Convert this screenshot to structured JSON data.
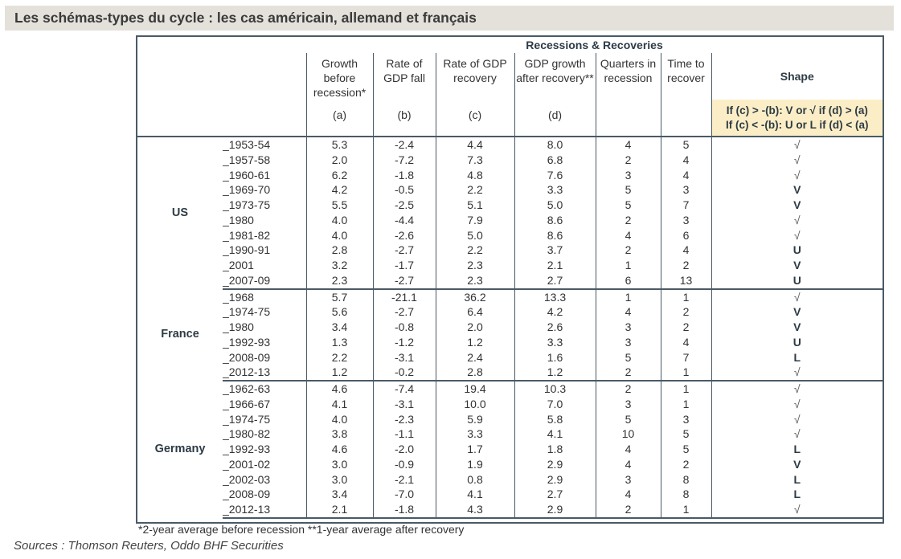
{
  "title": "Les schémas-types du cycle : les cas américain, allemand et français",
  "table": {
    "super_header": "Recessions & Recoveries",
    "columns": [
      {
        "label": "Growth before recession*",
        "symbol": "(a)"
      },
      {
        "label": "Rate of GDP fall",
        "symbol": "(b)"
      },
      {
        "label": "Rate of GDP recovery",
        "symbol": "(c)"
      },
      {
        "label": "GDP growth after recovery**",
        "symbol": "(d)"
      },
      {
        "label": "Quarters in recession",
        "symbol": ""
      },
      {
        "label": "Time to recover",
        "symbol": ""
      }
    ],
    "shape_header": "Shape",
    "shape_condition_1": "If (c) > -(b): V or √ if (d) > (a)",
    "shape_condition_2": "If (c) < -(b): U or L if (d) < (a)",
    "groups": [
      {
        "country": "US",
        "rows": [
          {
            "period": "_1953-54",
            "a": "5.3",
            "b": "-2.4",
            "c": "4.4",
            "d": "8.0",
            "q": "4",
            "t": "5",
            "shape": "√"
          },
          {
            "period": "_1957-58",
            "a": "2.0",
            "b": "-7.2",
            "c": "7.3",
            "d": "6.8",
            "q": "2",
            "t": "4",
            "shape": "√"
          },
          {
            "period": "_1960-61",
            "a": "6.2",
            "b": "-1.8",
            "c": "4.8",
            "d": "7.6",
            "q": "3",
            "t": "4",
            "shape": "√"
          },
          {
            "period": "_1969-70",
            "a": "4.2",
            "b": "-0.5",
            "c": "2.2",
            "d": "3.3",
            "q": "5",
            "t": "3",
            "shape": "V"
          },
          {
            "period": "_1973-75",
            "a": "5.5",
            "b": "-2.5",
            "c": "5.1",
            "d": "5.0",
            "q": "5",
            "t": "7",
            "shape": "V"
          },
          {
            "period": "_1980",
            "a": "4.0",
            "b": "-4.4",
            "c": "7.9",
            "d": "8.6",
            "q": "2",
            "t": "3",
            "shape": "√"
          },
          {
            "period": "_1981-82",
            "a": "4.0",
            "b": "-2.6",
            "c": "5.0",
            "d": "8.6",
            "q": "4",
            "t": "6",
            "shape": "√"
          },
          {
            "period": "_1990-91",
            "a": "2.8",
            "b": "-2.7",
            "c": "2.2",
            "d": "3.7",
            "q": "2",
            "t": "4",
            "shape": "U"
          },
          {
            "period": "_2001",
            "a": "3.2",
            "b": "-1.7",
            "c": "2.3",
            "d": "2.1",
            "q": "1",
            "t": "2",
            "shape": "V"
          },
          {
            "period": "_2007-09",
            "a": "2.3",
            "b": "-2.7",
            "c": "2.3",
            "d": "2.7",
            "q": "6",
            "t": "13",
            "shape": "U"
          }
        ]
      },
      {
        "country": "France",
        "rows": [
          {
            "period": "_1968",
            "a": "5.7",
            "b": "-21.1",
            "c": "36.2",
            "d": "13.3",
            "q": "1",
            "t": "1",
            "shape": "√"
          },
          {
            "period": "_1974-75",
            "a": "5.6",
            "b": "-2.7",
            "c": "6.4",
            "d": "4.2",
            "q": "4",
            "t": "2",
            "shape": "V"
          },
          {
            "period": "_1980",
            "a": "3.4",
            "b": "-0.8",
            "c": "2.0",
            "d": "2.6",
            "q": "3",
            "t": "2",
            "shape": "V"
          },
          {
            "period": "_1992-93",
            "a": "1.3",
            "b": "-1.2",
            "c": "1.2",
            "d": "3.3",
            "q": "3",
            "t": "4",
            "shape": "U"
          },
          {
            "period": "_2008-09",
            "a": "2.2",
            "b": "-3.1",
            "c": "2.4",
            "d": "1.6",
            "q": "5",
            "t": "7",
            "shape": "L"
          },
          {
            "period": "_2012-13",
            "a": "1.2",
            "b": "-0.2",
            "c": "2.8",
            "d": "1.2",
            "q": "2",
            "t": "1",
            "shape": "√"
          }
        ]
      },
      {
        "country": "Germany",
        "rows": [
          {
            "period": "_1962-63",
            "a": "4.6",
            "b": "-7.4",
            "c": "19.4",
            "d": "10.3",
            "q": "2",
            "t": "1",
            "shape": "√"
          },
          {
            "period": "_1966-67",
            "a": "4.1",
            "b": "-3.1",
            "c": "10.0",
            "d": "7.0",
            "q": "3",
            "t": "1",
            "shape": "√"
          },
          {
            "period": "_1974-75",
            "a": "4.0",
            "b": "-2.3",
            "c": "5.9",
            "d": "5.8",
            "q": "5",
            "t": "3",
            "shape": "√"
          },
          {
            "period": "_1980-82",
            "a": "3.8",
            "b": "-1.1",
            "c": "3.3",
            "d": "4.1",
            "q": "10",
            "t": "5",
            "shape": "√"
          },
          {
            "period": "_1992-93",
            "a": "4.6",
            "b": "-2.0",
            "c": "1.7",
            "d": "1.8",
            "q": "4",
            "t": "5",
            "shape": "L"
          },
          {
            "period": "_2001-02",
            "a": "3.0",
            "b": "-0.9",
            "c": "1.9",
            "d": "2.9",
            "q": "4",
            "t": "2",
            "shape": "V"
          },
          {
            "period": "_2002-03",
            "a": "3.0",
            "b": "-2.1",
            "c": "0.8",
            "d": "2.9",
            "q": "3",
            "t": "8",
            "shape": "L"
          },
          {
            "period": "_2008-09",
            "a": "3.4",
            "b": "-7.0",
            "c": "4.1",
            "d": "2.7",
            "q": "4",
            "t": "8",
            "shape": "L"
          },
          {
            "period": "_2012-13",
            "a": "2.1",
            "b": "-1.8",
            "c": "4.3",
            "d": "2.9",
            "q": "2",
            "t": "1",
            "shape": "√"
          }
        ]
      }
    ]
  },
  "footnote": "*2-year average before recession **1-year average after recovery",
  "sources": "Sources : Thomson Reuters, Oddo BHF Securities"
}
